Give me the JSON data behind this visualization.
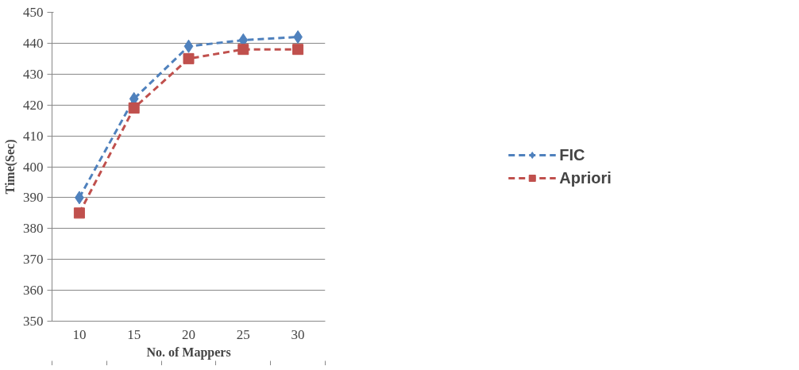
{
  "chart_data": {
    "type": "line",
    "xlabel": "No. of Mappers",
    "ylabel": "Time(Sec)",
    "categories": [
      "10",
      "15",
      "20",
      "25",
      "30"
    ],
    "series": [
      {
        "name": "FIC",
        "color": "#4f81bd",
        "marker": "diamond",
        "values": [
          390,
          422,
          439,
          441,
          442
        ]
      },
      {
        "name": "Apriori",
        "color": "#c0504d",
        "marker": "square",
        "values": [
          385,
          419,
          435,
          438,
          438
        ]
      }
    ],
    "ylim": [
      350,
      450
    ],
    "yticks": [
      350,
      360,
      370,
      380,
      390,
      400,
      410,
      420,
      430,
      440,
      450
    ],
    "grid": "y",
    "legend": "right",
    "line_style": "dashed"
  }
}
